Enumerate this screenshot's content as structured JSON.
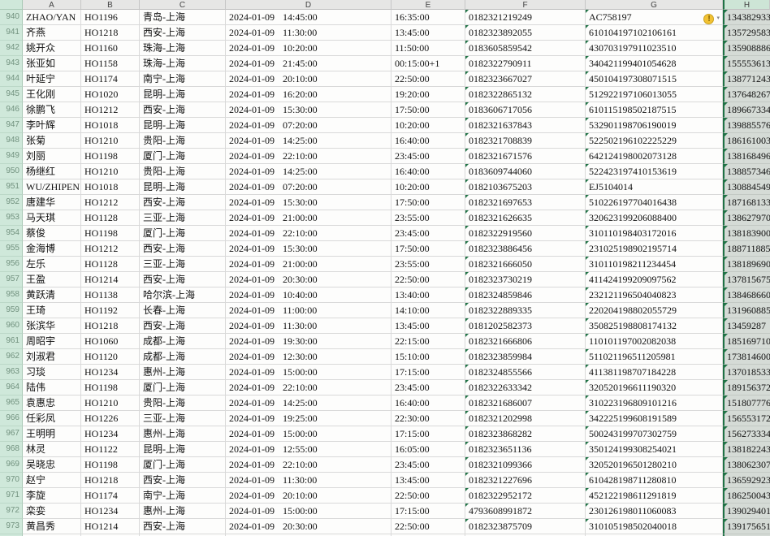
{
  "sheet": {
    "column_headers": [
      "A",
      "B",
      "C",
      "D",
      "E",
      "F",
      "G",
      "H"
    ],
    "selected_column": "H",
    "first_row_number": "940",
    "rows": [
      {
        "n": "940",
        "cells": [
          "ZHAO/YAN",
          "HO1196",
          "青岛-上海",
          "2024-01-09 14:45:00",
          "16:35:00",
          "0182321219249",
          "AC758197",
          "134382933"
        ],
        "warning": true
      },
      {
        "n": "941",
        "cells": [
          "齐燕",
          "HO1218",
          "西安-上海",
          "2024-01-09 11:30:00",
          "13:45:00",
          "0182323892055",
          "610104197102106161",
          "135729583"
        ],
        "warning": false
      },
      {
        "n": "942",
        "cells": [
          "姚开众",
          "HO1160",
          "珠海-上海",
          "2024-01-09 10:20:00",
          "11:50:00",
          "0183605859542",
          "430703197911023510",
          "135908886"
        ],
        "warning": false
      },
      {
        "n": "943",
        "cells": [
          "张亚如",
          "HO1158",
          "珠海-上海",
          "2024-01-09 21:45:00",
          "00:15:00+1",
          "0182322790911",
          "340421199401054628",
          "155553613"
        ],
        "warning": false
      },
      {
        "n": "944",
        "cells": [
          "叶延宁",
          "HO1174",
          "南宁-上海",
          "2024-01-09 20:10:00",
          "22:50:00",
          "0182323667027",
          "450104197308071515",
          "138771243"
        ],
        "warning": false
      },
      {
        "n": "945",
        "cells": [
          "王化刚",
          "HO1020",
          "昆明-上海",
          "2024-01-09 16:20:00",
          "19:20:00",
          "0182322865132",
          "512922197106013055",
          "137648267"
        ],
        "warning": false
      },
      {
        "n": "946",
        "cells": [
          "徐鹏飞",
          "HO1212",
          "西安-上海",
          "2024-01-09 15:30:00",
          "17:50:00",
          "0183606717056",
          "610115198502187515",
          "189667334"
        ],
        "warning": false
      },
      {
        "n": "947",
        "cells": [
          "李叶辉",
          "HO1018",
          "昆明-上海",
          "2024-01-09 07:20:00",
          "10:20:00",
          "0182321637843",
          "532901198706190019",
          "139885576"
        ],
        "warning": false
      },
      {
        "n": "948",
        "cells": [
          "张菊",
          "HO1210",
          "贵阳-上海",
          "2024-01-09 14:25:00",
          "16:40:00",
          "0182321708839",
          "522502196102225229",
          "186161003"
        ],
        "warning": false
      },
      {
        "n": "949",
        "cells": [
          "刘丽",
          "HO1198",
          "厦门-上海",
          "2024-01-09 22:10:00",
          "23:45:00",
          "0182321671576",
          "642124198002073128",
          "138168496"
        ],
        "warning": false
      },
      {
        "n": "950",
        "cells": [
          "杨继红",
          "HO1210",
          "贵阳-上海",
          "2024-01-09 14:25:00",
          "16:40:00",
          "0183609744060",
          "522423197410153619",
          "138857346"
        ],
        "warning": false
      },
      {
        "n": "951",
        "cells": [
          "WU/ZHIPEN",
          "HO1018",
          "昆明-上海",
          "2024-01-09 07:20:00",
          "10:20:00",
          "0182103675203",
          "EJ5104014",
          "130884549"
        ],
        "warning": false
      },
      {
        "n": "952",
        "cells": [
          "唐建华",
          "HO1212",
          "西安-上海",
          "2024-01-09 15:30:00",
          "17:50:00",
          "0182321697653",
          "510226197704016438",
          "187168133"
        ],
        "warning": false
      },
      {
        "n": "953",
        "cells": [
          "马天琪",
          "HO1128",
          "三亚-上海",
          "2024-01-09 21:00:00",
          "23:55:00",
          "0182321626635",
          "320623199206088400",
          "138627970"
        ],
        "warning": false
      },
      {
        "n": "954",
        "cells": [
          "蔡俊",
          "HO1198",
          "厦门-上海",
          "2024-01-09 22:10:00",
          "23:45:00",
          "0182322919560",
          "310110198403172016",
          "138183900"
        ],
        "warning": false
      },
      {
        "n": "955",
        "cells": [
          "金海博",
          "HO1212",
          "西安-上海",
          "2024-01-09 15:30:00",
          "17:50:00",
          "0182323886456",
          "231025198902195714",
          "188711885"
        ],
        "warning": false
      },
      {
        "n": "956",
        "cells": [
          "左乐",
          "HO1128",
          "三亚-上海",
          "2024-01-09 21:00:00",
          "23:55:00",
          "0182321666050",
          "310110198211234454",
          "138189690"
        ],
        "warning": false
      },
      {
        "n": "957",
        "cells": [
          "王盈",
          "HO1214",
          "西安-上海",
          "2024-01-09 20:30:00",
          "22:50:00",
          "0182323730219",
          "411424199209097562",
          "137815675"
        ],
        "warning": false
      },
      {
        "n": "958",
        "cells": [
          "黄跃清",
          "HO1138",
          "哈尔滨-上海",
          "2024-01-09 10:40:00",
          "13:40:00",
          "0182324859846",
          "232121196504040823",
          "138468660"
        ],
        "warning": false
      },
      {
        "n": "959",
        "cells": [
          "王琦",
          "HO1192",
          "长春-上海",
          "2024-01-09 11:00:00",
          "14:10:00",
          "0182322889335",
          "220204198802055729",
          "131960885"
        ],
        "warning": false
      },
      {
        "n": "960",
        "cells": [
          "张滨华",
          "HO1218",
          "西安-上海",
          "2024-01-09 11:30:00",
          "13:45:00",
          "0181202582373",
          "350825198808174132",
          "13459287"
        ],
        "warning": false
      },
      {
        "n": "961",
        "cells": [
          "周昭宇",
          "HO1060",
          "成都-上海",
          "2024-01-09 19:30:00",
          "22:15:00",
          "0182321666806",
          "110101197002082038",
          "185169710"
        ],
        "warning": false
      },
      {
        "n": "962",
        "cells": [
          "刘淑君",
          "HO1120",
          "成都-上海",
          "2024-01-09 12:30:00",
          "15:10:00",
          "0182323859984",
          "511021196511205981",
          "173814600"
        ],
        "warning": false
      },
      {
        "n": "963",
        "cells": [
          "习琰",
          "HO1234",
          "惠州-上海",
          "2024-01-09 15:00:00",
          "17:15:00",
          "0182324855566",
          "411381198707184228",
          "137018533"
        ],
        "warning": false
      },
      {
        "n": "964",
        "cells": [
          "陆伟",
          "HO1198",
          "厦门-上海",
          "2024-01-09 22:10:00",
          "23:45:00",
          "0182322633342",
          "320520196611190320",
          "189156372"
        ],
        "warning": false
      },
      {
        "n": "965",
        "cells": [
          "袁惠忠",
          "HO1210",
          "贵阳-上海",
          "2024-01-09 14:25:00",
          "16:40:00",
          "0182321686007",
          "310223196809101216",
          "151807776"
        ],
        "warning": false
      },
      {
        "n": "966",
        "cells": [
          "任彩凤",
          "HO1226",
          "三亚-上海",
          "2024-01-09 19:25:00",
          "22:30:00",
          "0182321202998",
          "342225199608191589",
          "156553172"
        ],
        "warning": false
      },
      {
        "n": "967",
        "cells": [
          "王明明",
          "HO1234",
          "惠州-上海",
          "2024-01-09 15:00:00",
          "17:15:00",
          "0182323868282",
          "500243199707302759",
          "156273334"
        ],
        "warning": false
      },
      {
        "n": "968",
        "cells": [
          "林灵",
          "HO1122",
          "昆明-上海",
          "2024-01-09 12:55:00",
          "16:05:00",
          "0182323651136",
          "350124199308254021",
          "138182243"
        ],
        "warning": false
      },
      {
        "n": "969",
        "cells": [
          "吴晓忠",
          "HO1198",
          "厦门-上海",
          "2024-01-09 22:10:00",
          "23:45:00",
          "0182321099366",
          "320520196501280210",
          "138062307"
        ],
        "warning": false
      },
      {
        "n": "970",
        "cells": [
          "赵宁",
          "HO1218",
          "西安-上海",
          "2024-01-09 11:30:00",
          "13:45:00",
          "0182321227696",
          "610428198711280810",
          "136592923"
        ],
        "warning": false
      },
      {
        "n": "971",
        "cells": [
          "李旋",
          "HO1174",
          "南宁-上海",
          "2024-01-09 20:10:00",
          "22:50:00",
          "0182322952172",
          "452122198611291819",
          "186250043"
        ],
        "warning": false
      },
      {
        "n": "972",
        "cells": [
          "栾娈",
          "HO1234",
          "惠州-上海",
          "2024-01-09 15:00:00",
          "17:15:00",
          "4793608991872",
          "230126198011060083",
          "139029401"
        ],
        "warning": false
      },
      {
        "n": "973",
        "cells": [
          "黄昌秀",
          "HO1214",
          "西安-上海",
          "2024-01-09 20:30:00",
          "22:50:00",
          "0182323875709",
          "310105198502040018",
          "139175651"
        ],
        "warning": false
      },
      {
        "n": "974",
        "cells": [
          "",
          "",
          "",
          "",
          "",
          "",
          "",
          ""
        ],
        "warning": false
      }
    ]
  },
  "icons": {
    "error_warning": "!",
    "dropdown_arrow": "▾"
  },
  "colors": {
    "selection_border_green": "#1f7145",
    "gutter_green": "#cfe8da",
    "selection_fill_gray": "#d5dbd6",
    "warning_yellow": "#f2c233",
    "stored_as_text_triangle": "#217346"
  }
}
